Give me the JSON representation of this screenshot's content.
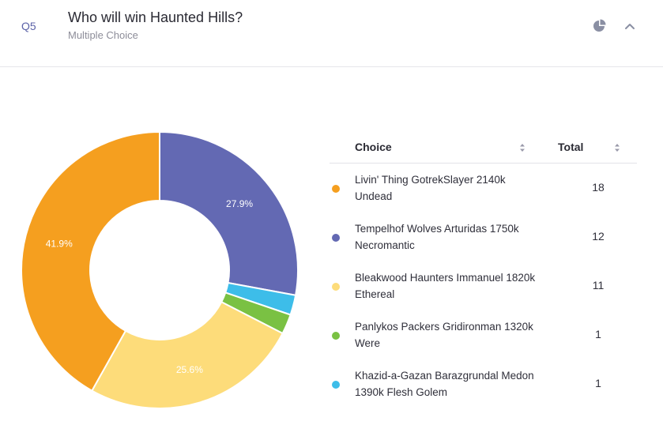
{
  "header": {
    "qnum": "Q5",
    "title": "Who will win Haunted Hills?",
    "subtitle": "Multiple Choice"
  },
  "icons": {
    "chart_toggle": "pie-chart-icon",
    "collapse": "chevron-up-icon"
  },
  "table": {
    "col_choice": "Choice",
    "col_total": "Total",
    "rows": [
      {
        "label": "Livin' Thing GotrekSlayer 2140k Undead",
        "total": "18",
        "color": "#f59f1f"
      },
      {
        "label": "Tempelhof Wolves Arturidas 1750k Necromantic",
        "total": "12",
        "color": "#6369b3"
      },
      {
        "label": "Bleakwood Haunters Immanuel 1820k Ethereal",
        "total": "11",
        "color": "#fddc7a"
      },
      {
        "label": "Panlykos Packers Gridironman 1320k Were",
        "total": "1",
        "color": "#7ac143"
      },
      {
        "label": "Khazid-a-Gazan Barazgrundal Medon 1390k Flesh Golem",
        "total": "1",
        "color": "#3dbde9"
      }
    ]
  },
  "chart_data": {
    "type": "pie",
    "donut": true,
    "categories": [
      "Livin' Thing GotrekSlayer 2140k Undead",
      "Tempelhof Wolves Arturidas 1750k Necromantic",
      "Bleakwood Haunters Immanuel 1820k Ethereal",
      "Panlykos Packers Gridironman 1320k Were",
      "Khazid-a-Gazan Barazgrundal Medon 1390k Flesh Golem"
    ],
    "values": [
      18,
      12,
      11,
      1,
      1
    ],
    "colors": [
      "#f59f1f",
      "#6369b3",
      "#fddc7a",
      "#7ac143",
      "#3dbde9"
    ],
    "slice_order": [
      1,
      4,
      3,
      2,
      0
    ],
    "data_labels": [
      "41.9%",
      "27.9%",
      "25.6%",
      "",
      ""
    ]
  }
}
